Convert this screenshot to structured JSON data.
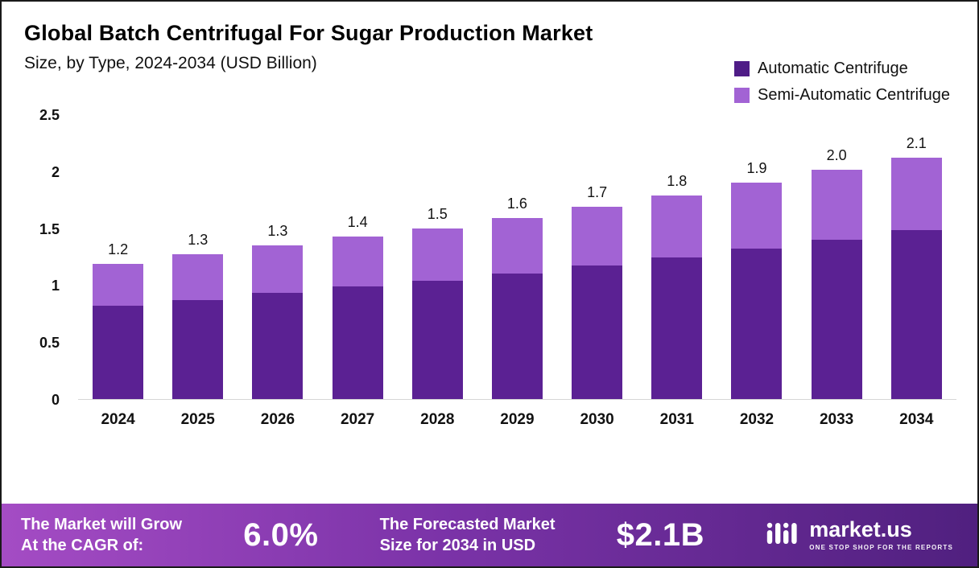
{
  "header": {
    "title": "Global Batch Centrifugal For Sugar Production Market",
    "subtitle": "Size, by Type, 2024-2034 (USD Billion)"
  },
  "legend": [
    {
      "label": "Automatic Centrifuge",
      "color": "#4f1c87"
    },
    {
      "label": "Semi-Automatic Centrifuge",
      "color": "#a263d4"
    }
  ],
  "chart_data": {
    "type": "bar",
    "stacked": true,
    "title": "Global Batch Centrifugal For Sugar Production Market Size, by Type, 2024-2034 (USD Billion)",
    "categories": [
      "2024",
      "2025",
      "2026",
      "2027",
      "2028",
      "2029",
      "2030",
      "2031",
      "2032",
      "2033",
      "2034"
    ],
    "series": [
      {
        "name": "Automatic Centrifuge",
        "color": "#5b2193",
        "values": [
          0.82,
          0.87,
          0.93,
          0.99,
          1.04,
          1.1,
          1.17,
          1.24,
          1.32,
          1.4,
          1.48
        ]
      },
      {
        "name": "Semi-Automatic Centrifuge",
        "color": "#a263d4",
        "values": [
          0.37,
          0.4,
          0.42,
          0.44,
          0.46,
          0.49,
          0.52,
          0.55,
          0.58,
          0.61,
          0.64
        ]
      }
    ],
    "total_labels": [
      "1.2",
      "1.3",
      "1.3",
      "1.4",
      "1.5",
      "1.6",
      "1.7",
      "1.8",
      "1.9",
      "2.0",
      "2.1"
    ],
    "xlabel": "",
    "ylabel": "",
    "ylim": [
      0,
      2.5
    ],
    "ytick_values": [
      0,
      0.5,
      1,
      1.5,
      2,
      2.5
    ],
    "ytick_labels": [
      "0",
      "0.5",
      "1",
      "1.5",
      "2",
      "2.5"
    ],
    "grid": false,
    "legend_position": "top-right"
  },
  "footer": {
    "growth_label_line1": "The Market will Grow",
    "growth_label_line2": "At the CAGR of:",
    "cagr_value": "6.0%",
    "forecast_label_line1": "The Forecasted Market",
    "forecast_label_line2": "Size for 2034 in USD",
    "forecast_value": "$2.1B",
    "brand": "market.us",
    "brand_tagline": "One Stop Shop For The Reports"
  }
}
